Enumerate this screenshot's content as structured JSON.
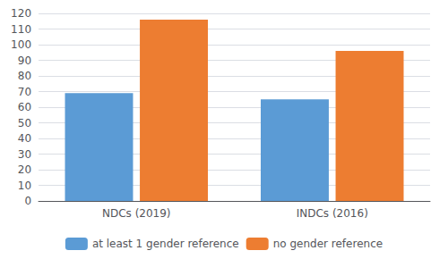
{
  "chart_data": {
    "type": "bar",
    "categories": [
      "NDCs (2019)",
      "INDCs (2016)"
    ],
    "series": [
      {
        "name": "at least 1 gender reference",
        "color": "#5B9BD5",
        "values": [
          69,
          65
        ]
      },
      {
        "name": "no gender reference",
        "color": "#ED7D31",
        "values": [
          116,
          96
        ]
      }
    ],
    "ylim": [
      0,
      120
    ],
    "yticks": [
      0,
      10,
      20,
      30,
      40,
      50,
      60,
      70,
      80,
      90,
      100,
      110,
      120
    ],
    "grid": true,
    "legend": "bottom"
  }
}
